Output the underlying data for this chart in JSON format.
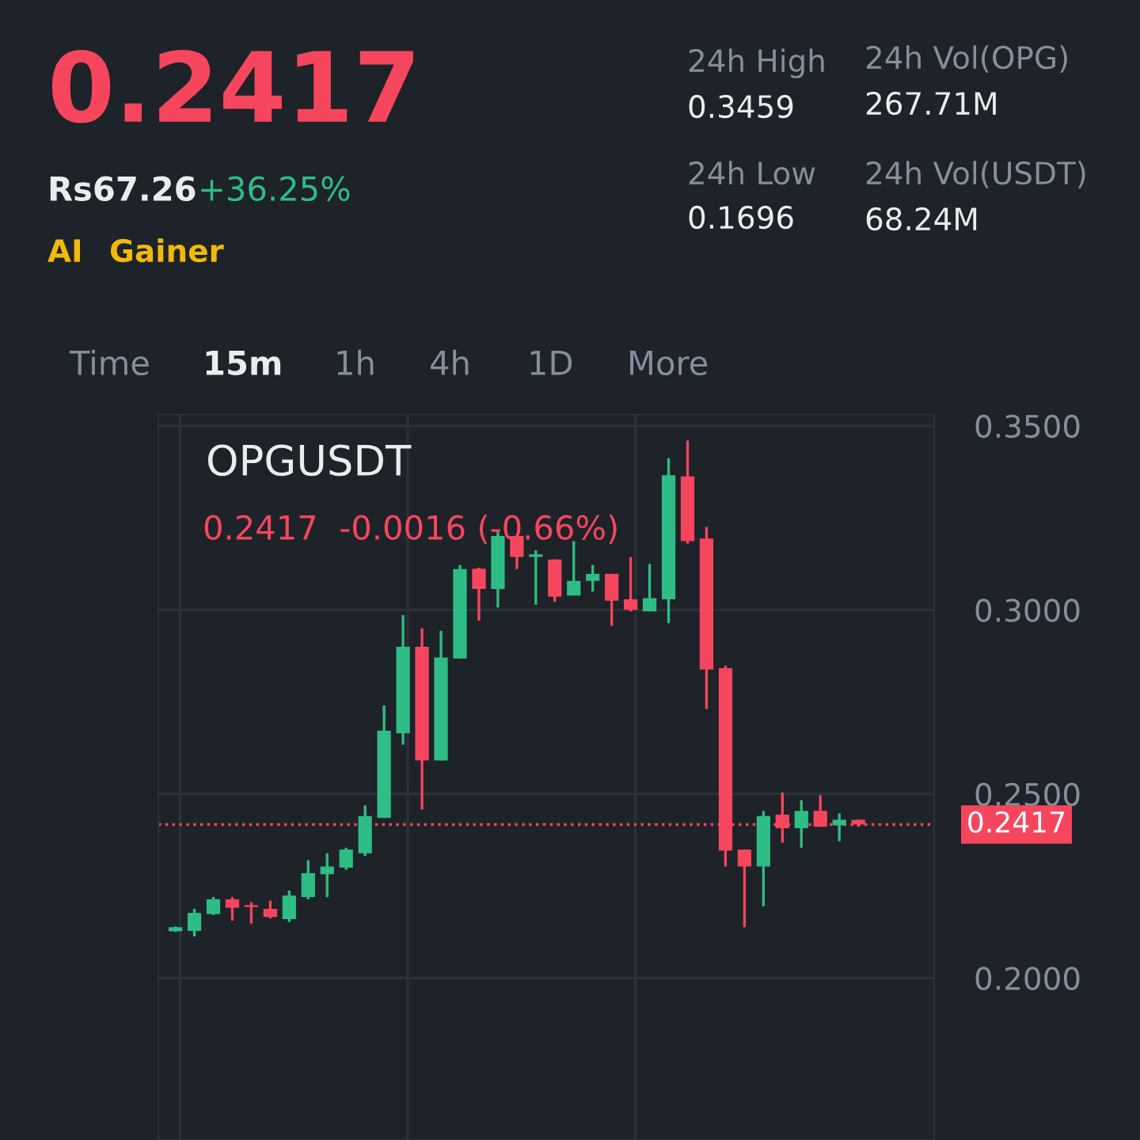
{
  "chart_data": {
    "type": "candlestick",
    "title": "OPGUSDT",
    "annotations": [
      "0.2417",
      "Rs67.26",
      "+36.25%",
      "AI",
      "Gainer",
      "24h High",
      "0.3459",
      "24h Vol(OPG)",
      "267.71M",
      "24h Low",
      "0.1696",
      "24h Vol(USDT)",
      "68.24M",
      "Time",
      "15m",
      "1h",
      "4h",
      "1D",
      "More",
      "0.2417  -0.0016 (-0.66%)"
    ],
    "categories": [
      null,
      null,
      null,
      null,
      null,
      null,
      null,
      null,
      null,
      null,
      null,
      null,
      null,
      null,
      null,
      null,
      null,
      null,
      null,
      null,
      null,
      null,
      null,
      null,
      null,
      null,
      null,
      null,
      null,
      null,
      null,
      null,
      null,
      null,
      null,
      null,
      null
    ],
    "ohlc": [
      [
        0.2127,
        0.214,
        0.2125,
        0.2138
      ],
      [
        0.2128,
        0.2188,
        0.2113,
        0.2177
      ],
      [
        0.2174,
        0.222,
        0.2171,
        0.2214
      ],
      [
        0.2214,
        0.222,
        0.2156,
        0.2191
      ],
      [
        0.2198,
        0.2206,
        0.2148,
        0.2193
      ],
      [
        0.2188,
        0.221,
        0.2162,
        0.2166
      ],
      [
        0.216,
        0.2238,
        0.2152,
        0.2224
      ],
      [
        0.222,
        0.232,
        0.2214,
        0.2285
      ],
      [
        0.2282,
        0.2339,
        0.222,
        0.2303
      ],
      [
        0.23,
        0.2354,
        0.2294,
        0.2349
      ],
      [
        0.2339,
        0.2469,
        0.2332,
        0.244
      ],
      [
        0.2435,
        0.2741,
        0.2435,
        0.2672
      ],
      [
        0.2665,
        0.2986,
        0.2634,
        0.29
      ],
      [
        0.29,
        0.295,
        0.2458,
        0.2591
      ],
      [
        0.2591,
        0.2943,
        0.2591,
        0.2871
      ],
      [
        0.2868,
        0.3122,
        0.2868,
        0.3111
      ],
      [
        0.3112,
        0.3115,
        0.2971,
        0.3057
      ],
      [
        0.3057,
        0.3216,
        0.3007,
        0.3201
      ],
      [
        0.3201,
        0.3203,
        0.3111,
        0.3144
      ],
      [
        0.3144,
        0.3162,
        0.3014,
        0.3151
      ],
      [
        0.3137,
        0.3137,
        0.3022,
        0.3036
      ],
      [
        0.3039,
        0.3187,
        0.3039,
        0.3079
      ],
      [
        0.3079,
        0.3122,
        0.305,
        0.3098
      ],
      [
        0.3098,
        0.3098,
        0.2957,
        0.3025
      ],
      [
        0.3029,
        0.3144,
        0.2996,
        0.3
      ],
      [
        0.2996,
        0.3125,
        0.2996,
        0.3032
      ],
      [
        0.3029,
        0.3412,
        0.2964,
        0.3366
      ],
      [
        0.3363,
        0.346,
        0.318,
        0.3187
      ],
      [
        0.3194,
        0.3225,
        0.2731,
        0.2838
      ],
      [
        0.2842,
        0.2849,
        0.2303,
        0.2346
      ],
      [
        0.2349,
        0.2349,
        0.2138,
        0.2303
      ],
      [
        0.2303,
        0.2454,
        0.2195,
        0.244
      ],
      [
        0.2444,
        0.2504,
        0.2368,
        0.2407
      ],
      [
        0.2407,
        0.2483,
        0.2354,
        0.2454
      ],
      [
        0.2454,
        0.2497,
        0.2411,
        0.2411
      ],
      [
        0.2415,
        0.2447,
        0.2372,
        0.243
      ],
      [
        0.243,
        0.243,
        0.2411,
        0.2417
      ]
    ],
    "colors": [
      "#2ebd85",
      "#2ebd85",
      "#2ebd85",
      "#f6465d",
      "#f6465d",
      "#f6465d",
      "#2ebd85",
      "#2ebd85",
      "#2ebd85",
      "#2ebd85",
      "#2ebd85",
      "#2ebd85",
      "#2ebd85",
      "#f6465d",
      "#2ebd85",
      "#2ebd85",
      "#f6465d",
      "#2ebd85",
      "#f6465d",
      "#2ebd85",
      "#f6465d",
      "#2ebd85",
      "#2ebd85",
      "#f6465d",
      "#f6465d",
      "#2ebd85",
      "#2ebd85",
      "#f6465d",
      "#f6465d",
      "#f6465d",
      "#f6465d",
      "#2ebd85",
      "#f6465d",
      "#2ebd85",
      "#f6465d",
      "#2ebd85",
      "#f6465d"
    ],
    "ylim": [
      0.156,
      0.353
    ],
    "yticks": [
      {
        "value": 0.2,
        "label": "0.2000"
      },
      {
        "value": 0.25,
        "label": "0.2500"
      },
      {
        "value": 0.3,
        "label": "0.3000"
      },
      {
        "value": 0.35,
        "label": "0.3500"
      }
    ],
    "ref_lines": [
      {
        "axis": "y",
        "value": 0.2417,
        "label": "0.2417",
        "color": "#f6465d",
        "line_style": "dotted"
      }
    ],
    "grid": true,
    "tick_labels": "y"
  }
}
